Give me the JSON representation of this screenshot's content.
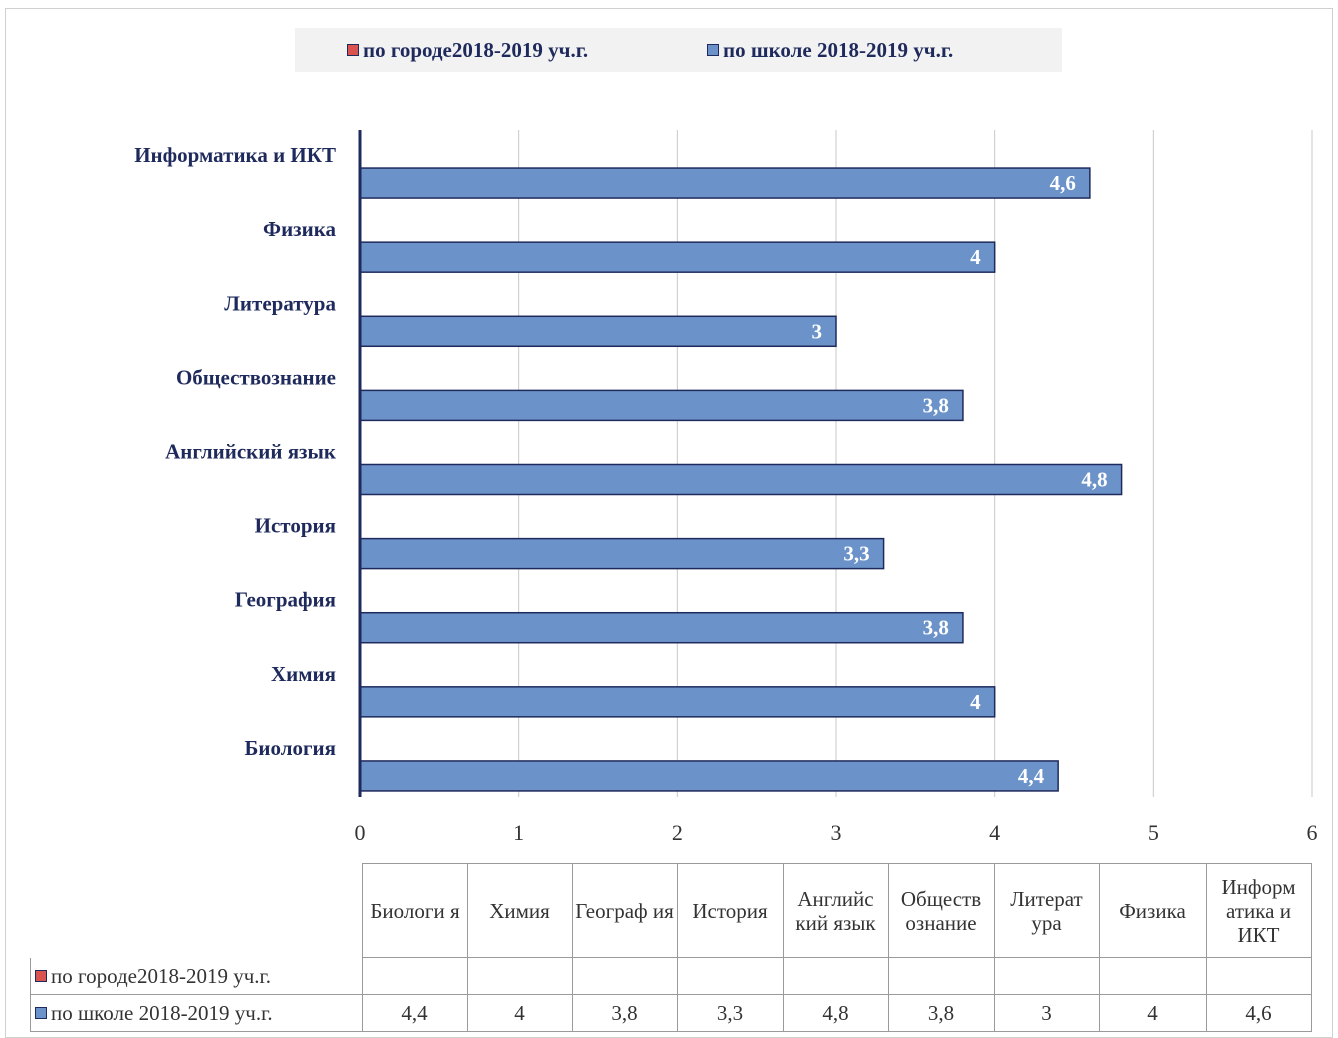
{
  "colors": {
    "city": "#d9534f",
    "school": "#6b93c9",
    "bar_border": "#1f2a5c",
    "label_text": "#1f2a5c"
  },
  "legend": {
    "city_label": "по городе2018-2019 уч.г.",
    "school_label": "по школе 2018-2019 уч.г."
  },
  "chart_data": {
    "type": "bar",
    "orientation": "horizontal",
    "categories": [
      "Биология",
      "Химия",
      "География",
      "История",
      "Английский язык",
      "Обществознание",
      "Литература",
      "Физика",
      "Информатика и ИКТ"
    ],
    "series": [
      {
        "name": "по городе2018-2019 уч.г.",
        "values": [
          null,
          null,
          null,
          null,
          null,
          null,
          null,
          null,
          null
        ]
      },
      {
        "name": "по школе 2018-2019 уч.г.",
        "values": [
          4.4,
          4,
          3.8,
          3.3,
          4.8,
          3.8,
          3,
          4,
          4.6
        ]
      }
    ],
    "data_labels": [
      "4,4",
      "4",
      "3,8",
      "3,3",
      "4,8",
      "3,8",
      "3",
      "4",
      "4,6"
    ],
    "xlim": [
      0,
      6
    ],
    "x_ticks": [
      "0",
      "1",
      "2",
      "3",
      "4",
      "5",
      "6"
    ],
    "grid": true,
    "legend_position": "top"
  },
  "table": {
    "headers": [
      "Биологи я",
      "Химия",
      "Географ ия",
      "История",
      "Английс кий язык",
      "Обществ ознание",
      "Литерат ура",
      "Физика",
      "Информ атика и ИКТ"
    ],
    "rows": [
      {
        "label": "по городе2018-2019 уч.г.",
        "cells": [
          "",
          "",
          "",
          "",
          "",
          "",
          "",
          "",
          ""
        ]
      },
      {
        "label": "по школе 2018-2019 уч.г.",
        "cells": [
          "4,4",
          "4",
          "3,8",
          "3,3",
          "4,8",
          "3,8",
          "3",
          "4",
          "4,6"
        ]
      }
    ]
  }
}
